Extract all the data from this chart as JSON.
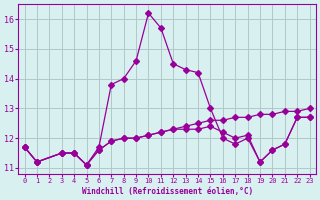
{
  "x": [
    0,
    1,
    2,
    3,
    4,
    5,
    6,
    7,
    8,
    9,
    10,
    11,
    12,
    13,
    14,
    15,
    16,
    17,
    18,
    19,
    20,
    21,
    22,
    23
  ],
  "line1": [
    11.7,
    11.2,
    null,
    11.5,
    11.5,
    11.1,
    11.6,
    11.9,
    12.0,
    12.0,
    12.1,
    12.2,
    12.3,
    12.4,
    12.5,
    12.6,
    12.6,
    12.7,
    12.7,
    12.8,
    12.8,
    12.9,
    12.9,
    13.0
  ],
  "line2": [
    11.7,
    11.2,
    null,
    11.5,
    11.5,
    11.1,
    11.7,
    13.8,
    14.0,
    14.6,
    16.2,
    15.7,
    14.5,
    14.3,
    14.2,
    13.0,
    12.0,
    11.8,
    12.0,
    11.2,
    11.6,
    11.8,
    12.7,
    12.7
  ],
  "line3": [
    11.7,
    11.2,
    null,
    11.5,
    11.5,
    11.1,
    11.6,
    11.9,
    12.0,
    12.0,
    12.1,
    12.2,
    12.3,
    12.3,
    12.3,
    12.4,
    12.2,
    12.0,
    12.1,
    11.2,
    11.6,
    11.8,
    12.7,
    12.7
  ],
  "ylim": [
    10.8,
    16.5
  ],
  "yticks": [
    11,
    12,
    13,
    14,
    15,
    16
  ],
  "xlim": [
    -0.5,
    23.5
  ],
  "xticks": [
    0,
    1,
    2,
    3,
    4,
    5,
    6,
    7,
    8,
    9,
    10,
    11,
    12,
    13,
    14,
    15,
    16,
    17,
    18,
    19,
    20,
    21,
    22,
    23
  ],
  "xlabel": "Windchill (Refroidissement éolien,°C)",
  "line_color": "#990099",
  "bg_color": "#d8f0f0",
  "grid_color": "#b0c8c8",
  "font_color": "#990099",
  "marker": "D",
  "marker_size": 3
}
